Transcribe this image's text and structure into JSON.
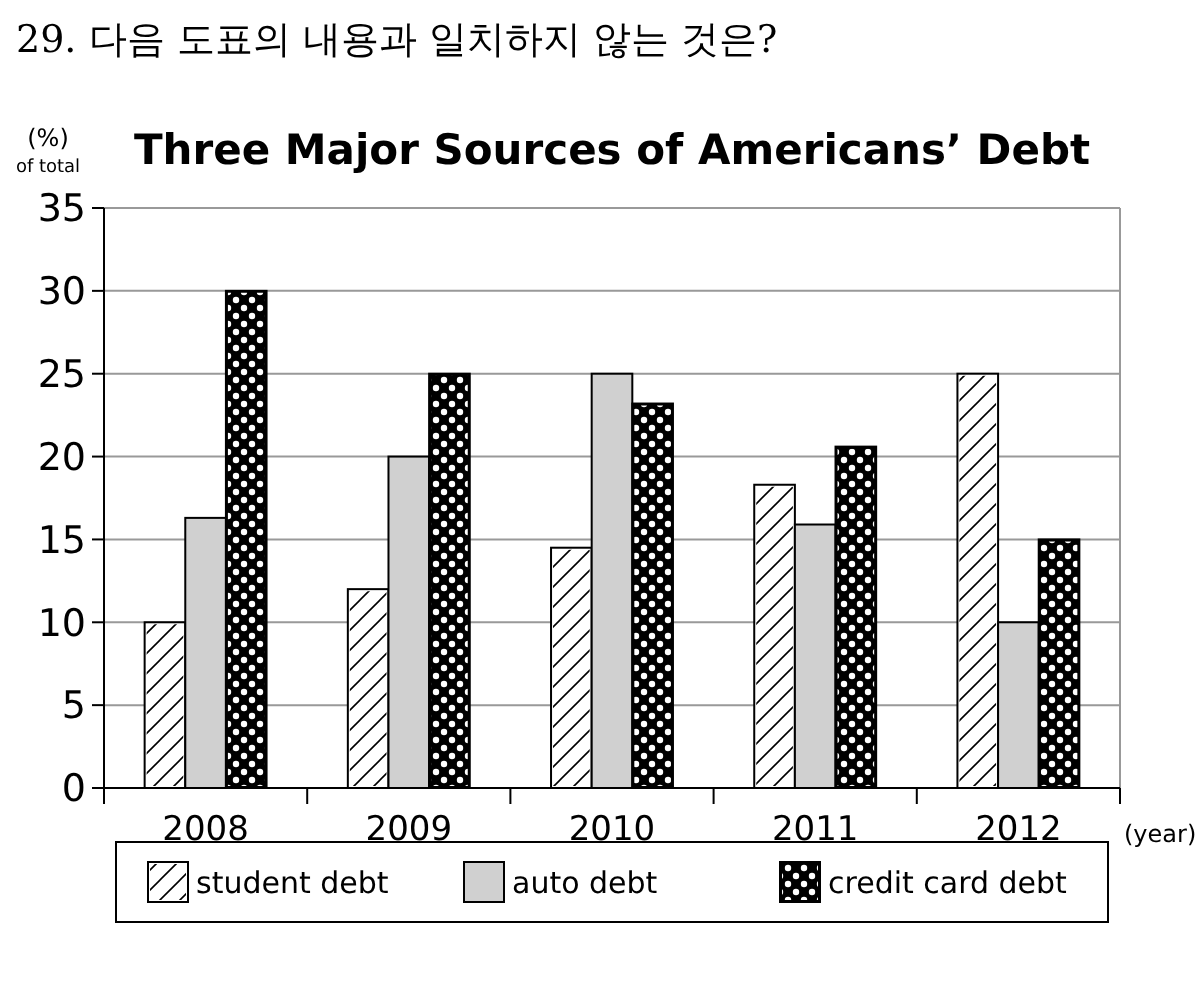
{
  "chart_data": {
    "type": "bar",
    "title": "Three Major Sources of Americans’ Debt",
    "ylabel": "(%) of total",
    "xlabel": "(year)",
    "annotations": [
      "29. 다음 도표의 내용과 일치하지 않는 것은?"
    ],
    "categories": [
      "2008",
      "2009",
      "2010",
      "2011",
      "2012"
    ],
    "series": [
      {
        "name": "student debt",
        "color": "#ffffff",
        "values": [
          10,
          12,
          14.5,
          18.3,
          25
        ]
      },
      {
        "name": "auto debt",
        "color": "#d0d0d0",
        "values": [
          16.3,
          20,
          25,
          15.9,
          10
        ]
      },
      {
        "name": "credit card debt",
        "color": "#000000",
        "values": [
          30,
          25,
          23.2,
          20.6,
          15
        ]
      }
    ],
    "ylim": [
      0,
      35
    ],
    "yticks": [
      0,
      5,
      10,
      15,
      20,
      25,
      30,
      35
    ],
    "grid": "y",
    "legend": "bottom"
  }
}
